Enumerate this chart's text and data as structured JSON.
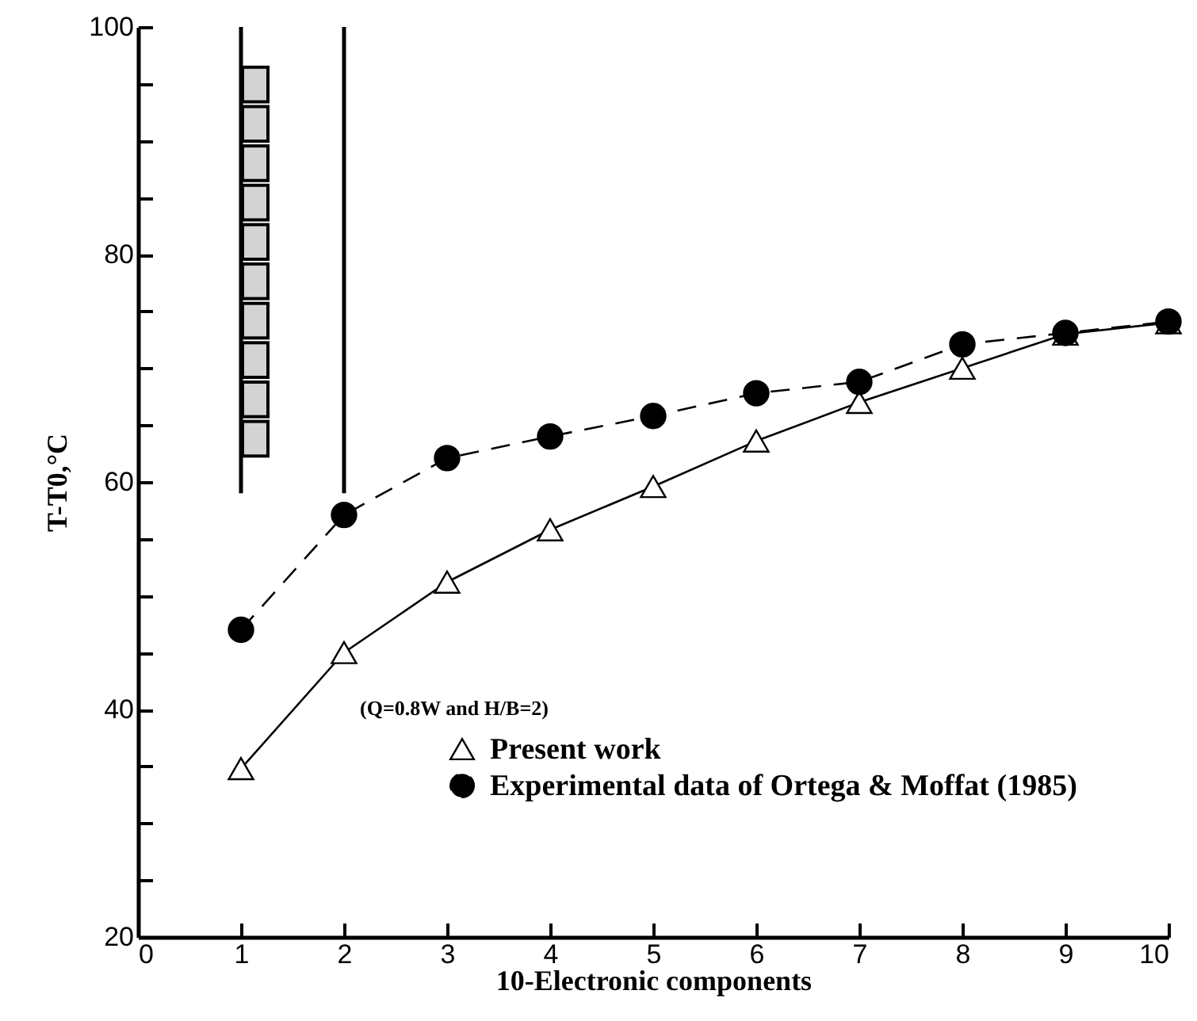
{
  "chart_data": {
    "type": "line",
    "xlabel": "10-Electronic components",
    "ylabel": "T-T0,°C",
    "x": [
      1,
      2,
      3,
      4,
      5,
      6,
      7,
      8,
      9,
      10
    ],
    "series": [
      {
        "name": "Present work",
        "color": "#000000",
        "marker": "triangle",
        "line_style": "solid",
        "values": [
          34.8,
          45,
          51.2,
          55.8,
          59.6,
          63.6,
          67,
          70,
          73,
          74
        ]
      },
      {
        "name": "Experimental data of  Ortega & Moffat (1985)",
        "color": "#000000",
        "marker": "circle",
        "line_style": "dashed",
        "values": [
          47,
          57.1,
          62.1,
          64,
          65.8,
          67.8,
          68.8,
          72.1,
          73.1,
          74.1
        ]
      }
    ],
    "xlim": [
      0,
      10
    ],
    "xticks": [
      0,
      1,
      2,
      3,
      4,
      5,
      6,
      7,
      8,
      9,
      10
    ],
    "ylim": [
      20,
      100
    ],
    "yticks": [
      20,
      {
        "value": 25,
        "label": null
      },
      {
        "value": 30,
        "label": null
      },
      {
        "value": 35,
        "label": null
      },
      40,
      {
        "value": 45,
        "label": null
      },
      {
        "value": 50,
        "label": null
      },
      {
        "value": 55,
        "label": null
      },
      60,
      {
        "value": 65,
        "label": null
      },
      {
        "value": 70,
        "label": null
      },
      {
        "value": 75,
        "label": null
      },
      80,
      {
        "value": 85,
        "label": null
      },
      {
        "value": 90,
        "label": null
      },
      {
        "value": 95,
        "label": null
      },
      100
    ],
    "grid": false,
    "legend": "bottom right",
    "annotations": [
      "(Q=0.8W and H/B=2)"
    ]
  }
}
